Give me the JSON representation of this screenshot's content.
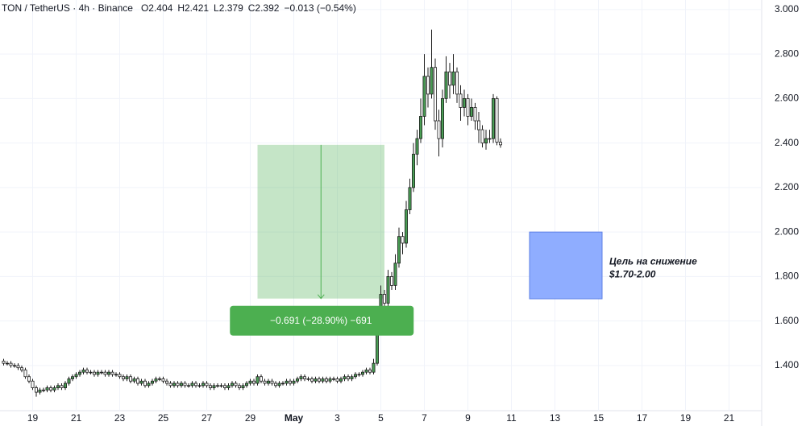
{
  "chart_data": {
    "type": "candlestick",
    "title": "TON / TetherUS · 4h · Binance",
    "header_values": [
      "O2.404",
      "H2.421",
      "L2.379",
      "C2.392",
      "−0.013 (−0.54%)"
    ],
    "up_color": "#4a9e55",
    "down_color": "#ffffff",
    "outline_color": "#1e1e1e",
    "grid": true,
    "xlim": [
      -36,
      804
    ],
    "xticks": [
      {
        "value": 0,
        "label": "19"
      },
      {
        "value": 48,
        "label": "21"
      },
      {
        "value": 96,
        "label": "23"
      },
      {
        "value": 144,
        "label": "25"
      },
      {
        "value": 192,
        "label": "27"
      },
      {
        "value": 240,
        "label": "29"
      },
      {
        "value": 288,
        "label": "May"
      },
      {
        "value": 336,
        "label": "3"
      },
      {
        "value": 384,
        "label": "5"
      },
      {
        "value": 432,
        "label": "7"
      },
      {
        "value": 480,
        "label": "9"
      },
      {
        "value": 528,
        "label": "11"
      },
      {
        "value": 576,
        "label": "13"
      },
      {
        "value": 624,
        "label": "15"
      },
      {
        "value": 672,
        "label": "17"
      },
      {
        "value": 720,
        "label": "19"
      },
      {
        "value": 768,
        "label": "21"
      }
    ],
    "ylim": [
      1.197,
      3.043
    ],
    "yticks": [
      {
        "value": 1.4,
        "label": "1.400"
      },
      {
        "value": 1.6,
        "label": "1.600"
      },
      {
        "value": 1.8,
        "label": "1.800"
      },
      {
        "value": 2.0,
        "label": "2.000"
      },
      {
        "value": 2.2,
        "label": "2.200"
      },
      {
        "value": 2.4,
        "label": "2.400"
      },
      {
        "value": 2.6,
        "label": "2.600"
      },
      {
        "value": 2.8,
        "label": "2.800"
      },
      {
        "value": 3.0,
        "label": "3.000"
      }
    ],
    "x": [
      -32,
      -28,
      -24,
      -20,
      -16,
      -12,
      -8,
      -4,
      0,
      4,
      8,
      12,
      16,
      20,
      24,
      28,
      32,
      36,
      40,
      44,
      48,
      52,
      56,
      60,
      64,
      68,
      72,
      76,
      80,
      84,
      88,
      92,
      96,
      100,
      104,
      108,
      112,
      116,
      120,
      124,
      128,
      132,
      136,
      140,
      144,
      148,
      152,
      156,
      160,
      164,
      168,
      172,
      176,
      180,
      184,
      188,
      192,
      196,
      200,
      204,
      208,
      212,
      216,
      220,
      224,
      228,
      232,
      236,
      240,
      244,
      248,
      252,
      256,
      260,
      264,
      268,
      272,
      276,
      280,
      284,
      288,
      292,
      296,
      300,
      304,
      308,
      312,
      316,
      320,
      324,
      328,
      332,
      336,
      340,
      344,
      348,
      352,
      356,
      360,
      364,
      368,
      372,
      376,
      380,
      384,
      388,
      392,
      396,
      400,
      404,
      408,
      412,
      416,
      420,
      424,
      428,
      432,
      436,
      440,
      444,
      448,
      452,
      456,
      460,
      464,
      468,
      472,
      476,
      480,
      484,
      488,
      492,
      496,
      500,
      504,
      508,
      512,
      516
    ],
    "open": [
      1.42,
      1.41,
      1.41,
      1.4,
      1.4,
      1.39,
      1.38,
      1.35,
      1.33,
      1.3,
      1.28,
      1.29,
      1.29,
      1.3,
      1.29,
      1.3,
      1.31,
      1.3,
      1.32,
      1.34,
      1.35,
      1.36,
      1.37,
      1.38,
      1.37,
      1.37,
      1.36,
      1.37,
      1.37,
      1.36,
      1.37,
      1.36,
      1.36,
      1.35,
      1.34,
      1.35,
      1.33,
      1.34,
      1.32,
      1.33,
      1.31,
      1.32,
      1.33,
      1.34,
      1.34,
      1.33,
      1.32,
      1.31,
      1.32,
      1.31,
      1.32,
      1.31,
      1.31,
      1.32,
      1.31,
      1.31,
      1.32,
      1.31,
      1.3,
      1.31,
      1.31,
      1.31,
      1.3,
      1.31,
      1.32,
      1.31,
      1.3,
      1.31,
      1.32,
      1.33,
      1.32,
      1.35,
      1.33,
      1.32,
      1.33,
      1.32,
      1.31,
      1.32,
      1.32,
      1.33,
      1.32,
      1.33,
      1.34,
      1.35,
      1.34,
      1.34,
      1.33,
      1.34,
      1.33,
      1.34,
      1.33,
      1.34,
      1.34,
      1.33,
      1.34,
      1.35,
      1.34,
      1.35,
      1.36,
      1.36,
      1.37,
      1.38,
      1.37,
      1.41,
      1.62,
      1.72,
      1.68,
      1.8,
      1.76,
      1.86,
      1.98,
      1.95,
      2.1,
      2.2,
      2.35,
      2.42,
      2.52,
      2.7,
      2.62,
      2.74,
      2.5,
      2.42,
      2.6,
      2.72,
      2.66,
      2.72,
      2.62,
      2.56,
      2.6,
      2.52,
      2.56,
      2.5,
      2.46,
      2.4,
      2.42,
      2.42,
      2.6,
      2.404
    ],
    "high": [
      1.43,
      1.42,
      1.42,
      1.41,
      1.41,
      1.4,
      1.39,
      1.36,
      1.34,
      1.31,
      1.3,
      1.3,
      1.31,
      1.31,
      1.31,
      1.32,
      1.32,
      1.33,
      1.35,
      1.36,
      1.37,
      1.38,
      1.39,
      1.39,
      1.38,
      1.38,
      1.38,
      1.38,
      1.38,
      1.38,
      1.38,
      1.37,
      1.37,
      1.36,
      1.36,
      1.36,
      1.35,
      1.35,
      1.34,
      1.34,
      1.33,
      1.34,
      1.35,
      1.35,
      1.35,
      1.34,
      1.33,
      1.33,
      1.33,
      1.33,
      1.33,
      1.32,
      1.33,
      1.33,
      1.32,
      1.33,
      1.33,
      1.32,
      1.32,
      1.32,
      1.32,
      1.32,
      1.32,
      1.33,
      1.33,
      1.32,
      1.32,
      1.33,
      1.34,
      1.34,
      1.36,
      1.36,
      1.34,
      1.34,
      1.34,
      1.33,
      1.33,
      1.33,
      1.34,
      1.34,
      1.34,
      1.35,
      1.36,
      1.36,
      1.35,
      1.35,
      1.35,
      1.35,
      1.35,
      1.35,
      1.35,
      1.35,
      1.35,
      1.35,
      1.36,
      1.36,
      1.36,
      1.37,
      1.37,
      1.38,
      1.39,
      1.39,
      1.43,
      1.64,
      1.76,
      1.74,
      1.83,
      1.82,
      1.9,
      2.02,
      2.0,
      2.14,
      2.24,
      2.4,
      2.46,
      2.6,
      2.8,
      2.74,
      2.91,
      2.78,
      2.55,
      2.64,
      2.79,
      2.76,
      2.8,
      2.74,
      2.66,
      2.64,
      2.62,
      2.6,
      2.58,
      2.54,
      2.48,
      2.46,
      2.46,
      2.62,
      2.61,
      2.421
    ],
    "low": [
      1.4,
      1.4,
      1.39,
      1.39,
      1.38,
      1.37,
      1.34,
      1.32,
      1.29,
      1.26,
      1.27,
      1.28,
      1.28,
      1.28,
      1.28,
      1.29,
      1.29,
      1.29,
      1.31,
      1.33,
      1.34,
      1.35,
      1.36,
      1.36,
      1.36,
      1.35,
      1.35,
      1.36,
      1.35,
      1.35,
      1.35,
      1.35,
      1.34,
      1.33,
      1.33,
      1.32,
      1.32,
      1.31,
      1.31,
      1.3,
      1.3,
      1.31,
      1.32,
      1.33,
      1.32,
      1.31,
      1.3,
      1.3,
      1.3,
      1.3,
      1.3,
      1.3,
      1.3,
      1.3,
      1.3,
      1.3,
      1.3,
      1.29,
      1.29,
      1.3,
      1.3,
      1.29,
      1.29,
      1.3,
      1.3,
      1.29,
      1.29,
      1.3,
      1.31,
      1.31,
      1.31,
      1.32,
      1.31,
      1.31,
      1.31,
      1.3,
      1.3,
      1.31,
      1.31,
      1.31,
      1.31,
      1.32,
      1.33,
      1.33,
      1.33,
      1.32,
      1.32,
      1.32,
      1.32,
      1.32,
      1.32,
      1.33,
      1.32,
      1.32,
      1.33,
      1.33,
      1.33,
      1.34,
      1.35,
      1.35,
      1.36,
      1.36,
      1.36,
      1.4,
      1.6,
      1.64,
      1.66,
      1.74,
      1.74,
      1.84,
      1.9,
      1.93,
      2.08,
      2.18,
      2.3,
      2.4,
      2.48,
      2.56,
      2.6,
      2.46,
      2.34,
      2.38,
      2.58,
      2.6,
      2.62,
      2.58,
      2.5,
      2.52,
      2.48,
      2.5,
      2.46,
      2.4,
      2.38,
      2.37,
      2.4,
      2.4,
      2.39,
      2.379
    ],
    "close": [
      1.41,
      1.41,
      1.4,
      1.4,
      1.39,
      1.38,
      1.35,
      1.33,
      1.3,
      1.28,
      1.29,
      1.29,
      1.3,
      1.29,
      1.3,
      1.31,
      1.3,
      1.32,
      1.34,
      1.35,
      1.36,
      1.37,
      1.38,
      1.37,
      1.37,
      1.36,
      1.37,
      1.37,
      1.36,
      1.37,
      1.36,
      1.36,
      1.35,
      1.34,
      1.35,
      1.33,
      1.34,
      1.32,
      1.33,
      1.31,
      1.32,
      1.33,
      1.34,
      1.34,
      1.33,
      1.32,
      1.31,
      1.32,
      1.31,
      1.32,
      1.31,
      1.31,
      1.32,
      1.31,
      1.31,
      1.32,
      1.31,
      1.3,
      1.31,
      1.31,
      1.31,
      1.3,
      1.31,
      1.32,
      1.31,
      1.3,
      1.31,
      1.32,
      1.33,
      1.32,
      1.35,
      1.33,
      1.32,
      1.33,
      1.32,
      1.31,
      1.32,
      1.32,
      1.33,
      1.32,
      1.33,
      1.34,
      1.35,
      1.34,
      1.34,
      1.33,
      1.34,
      1.33,
      1.34,
      1.33,
      1.34,
      1.34,
      1.33,
      1.34,
      1.35,
      1.34,
      1.35,
      1.36,
      1.36,
      1.37,
      1.38,
      1.37,
      1.41,
      1.62,
      1.72,
      1.68,
      1.8,
      1.76,
      1.86,
      1.98,
      1.95,
      2.1,
      2.2,
      2.35,
      2.42,
      2.52,
      2.7,
      2.62,
      2.74,
      2.5,
      2.42,
      2.6,
      2.72,
      2.66,
      2.72,
      2.62,
      2.56,
      2.6,
      2.52,
      2.56,
      2.5,
      2.46,
      2.4,
      2.42,
      2.42,
      2.6,
      2.404,
      2.392
    ],
    "measure": {
      "x": [
        248,
        388
      ],
      "from": 2.392,
      "to": 1.701,
      "label": "−0.691 (−28.90%) −691",
      "color": "#4caf50"
    },
    "target_zone": {
      "x": [
        548,
        628
      ],
      "from": 2.0,
      "to": 1.7,
      "color": "#8fadff",
      "label_lines": [
        "Цель на снижение",
        "$1.70-2.00"
      ]
    }
  }
}
